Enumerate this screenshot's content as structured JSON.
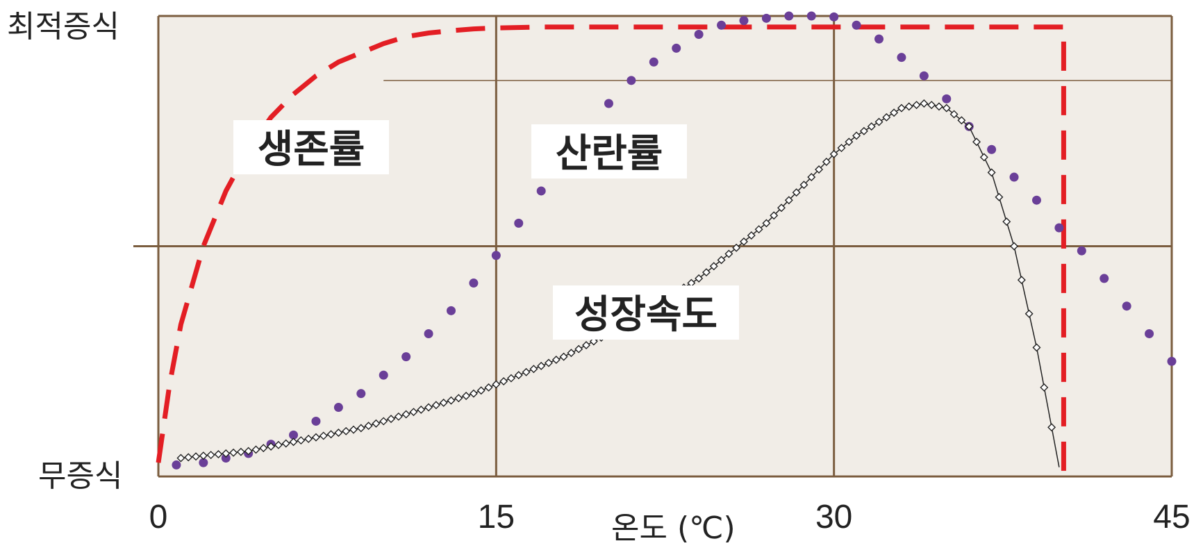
{
  "chart_data": {
    "type": "line",
    "xlabel": "온도 (℃)",
    "x_ticks": [
      0,
      15,
      30,
      45
    ],
    "xlim": [
      0,
      45
    ],
    "y_top_label": "최적증식",
    "y_bottom_label": "무증식",
    "ylim": [
      0,
      1
    ],
    "grid": true,
    "colors": {
      "background": "#f1ede7",
      "grid": "#7b5d3f",
      "survival": "#e31e24",
      "spawning": "#6a3f98",
      "growth": "#222222"
    },
    "series": [
      {
        "name": "생존률",
        "style": "dashed",
        "points": [
          [
            0,
            0.03
          ],
          [
            0.5,
            0.2
          ],
          [
            1,
            0.33
          ],
          [
            2,
            0.5
          ],
          [
            3,
            0.62
          ],
          [
            4,
            0.71
          ],
          [
            5,
            0.78
          ],
          [
            6,
            0.83
          ],
          [
            7,
            0.87
          ],
          [
            8,
            0.9
          ],
          [
            9,
            0.92
          ],
          [
            10,
            0.94
          ],
          [
            11,
            0.955
          ],
          [
            12,
            0.963
          ],
          [
            13,
            0.968
          ],
          [
            14,
            0.972
          ],
          [
            15,
            0.974
          ],
          [
            17,
            0.976
          ],
          [
            20,
            0.976
          ],
          [
            25,
            0.976
          ],
          [
            30,
            0.976
          ],
          [
            35,
            0.976
          ],
          [
            40.2,
            0.976
          ],
          [
            40.2,
            0.0
          ]
        ]
      },
      {
        "name": "산란률",
        "style": "dotted",
        "points": [
          [
            0.8,
            0.025
          ],
          [
            2,
            0.03
          ],
          [
            3,
            0.04
          ],
          [
            4,
            0.05
          ],
          [
            5,
            0.07
          ],
          [
            6,
            0.09
          ],
          [
            7,
            0.12
          ],
          [
            8,
            0.15
          ],
          [
            9,
            0.18
          ],
          [
            10,
            0.22
          ],
          [
            11,
            0.26
          ],
          [
            12,
            0.31
          ],
          [
            13,
            0.36
          ],
          [
            14,
            0.42
          ],
          [
            15,
            0.48
          ],
          [
            16,
            0.55
          ],
          [
            17,
            0.62
          ],
          [
            18,
            0.69
          ],
          [
            19,
            0.75
          ],
          [
            20,
            0.81
          ],
          [
            21,
            0.86
          ],
          [
            22,
            0.9
          ],
          [
            23,
            0.93
          ],
          [
            24,
            0.96
          ],
          [
            25,
            0.98
          ],
          [
            26,
            0.99
          ],
          [
            27,
            0.995
          ],
          [
            28,
            1.0
          ],
          [
            29,
            1.0
          ],
          [
            30,
            0.998
          ],
          [
            31,
            0.98
          ],
          [
            32,
            0.95
          ],
          [
            33,
            0.91
          ],
          [
            34,
            0.87
          ],
          [
            35,
            0.82
          ],
          [
            36,
            0.76
          ],
          [
            37,
            0.71
          ],
          [
            38,
            0.65
          ],
          [
            39,
            0.6
          ],
          [
            40,
            0.54
          ],
          [
            41,
            0.49
          ],
          [
            42,
            0.43
          ],
          [
            43,
            0.37
          ],
          [
            44,
            0.31
          ],
          [
            45,
            0.25
          ]
        ]
      },
      {
        "name": "성장속도",
        "style": "markers",
        "points": [
          [
            1,
            0.04
          ],
          [
            2,
            0.045
          ],
          [
            3,
            0.05
          ],
          [
            4,
            0.055
          ],
          [
            5,
            0.065
          ],
          [
            6,
            0.075
          ],
          [
            7,
            0.085
          ],
          [
            8,
            0.095
          ],
          [
            9,
            0.105
          ],
          [
            10,
            0.12
          ],
          [
            11,
            0.135
          ],
          [
            12,
            0.15
          ],
          [
            13,
            0.165
          ],
          [
            14,
            0.18
          ],
          [
            15,
            0.2
          ],
          [
            16,
            0.22
          ],
          [
            17,
            0.24
          ],
          [
            18,
            0.26
          ],
          [
            19,
            0.285
          ],
          [
            20,
            0.31
          ],
          [
            21,
            0.34
          ],
          [
            22,
            0.37
          ],
          [
            23,
            0.4
          ],
          [
            24,
            0.43
          ],
          [
            25,
            0.47
          ],
          [
            26,
            0.51
          ],
          [
            27,
            0.55
          ],
          [
            28,
            0.6
          ],
          [
            29,
            0.65
          ],
          [
            30,
            0.7
          ],
          [
            31,
            0.74
          ],
          [
            32,
            0.77
          ],
          [
            33,
            0.8
          ],
          [
            34,
            0.81
          ],
          [
            35,
            0.8
          ],
          [
            36,
            0.76
          ],
          [
            37,
            0.66
          ],
          [
            38,
            0.5
          ],
          [
            39,
            0.28
          ],
          [
            40,
            0.02
          ]
        ]
      }
    ]
  }
}
